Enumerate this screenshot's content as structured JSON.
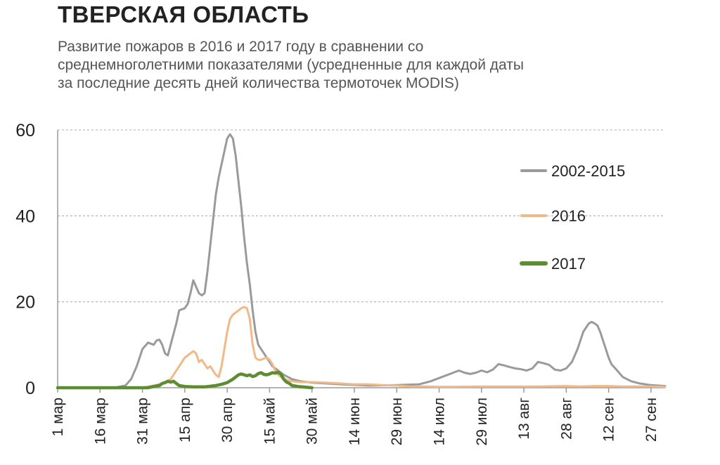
{
  "title": "ТВЕРСКАЯ ОБЛАСТЬ",
  "subtitle_lines": [
    "Развитие пожаров в 2016 и 2017 году в сравнении со",
    "среднемноголетними показателями (усредненные для каждой даты",
    "за последние десять дней количества термоточек MODIS)"
  ],
  "chart_data": {
    "type": "line",
    "title": "ТВЕРСКАЯ ОБЛАСТЬ",
    "xlabel": "",
    "ylabel": "",
    "ylim": [
      0,
      60
    ],
    "yticks": [
      0,
      20,
      40,
      60
    ],
    "xlim": [
      0,
      215
    ],
    "xticks": [
      {
        "day": 0,
        "label": "1 мар"
      },
      {
        "day": 15,
        "label": "16 мар"
      },
      {
        "day": 30,
        "label": "31 мар"
      },
      {
        "day": 45,
        "label": "15 апр"
      },
      {
        "day": 60,
        "label": "30 апр"
      },
      {
        "day": 75,
        "label": "15 май"
      },
      {
        "day": 90,
        "label": "30 май"
      },
      {
        "day": 105,
        "label": "14 июн"
      },
      {
        "day": 120,
        "label": "29 июн"
      },
      {
        "day": 135,
        "label": "14 июл"
      },
      {
        "day": 150,
        "label": "29 июл"
      },
      {
        "day": 165,
        "label": "13 авг"
      },
      {
        "day": 180,
        "label": "28 авг"
      },
      {
        "day": 195,
        "label": "12 сен"
      },
      {
        "day": 210,
        "label": "27 сен"
      }
    ],
    "grid": "horizontal-dashed",
    "legend_position": "right",
    "series": [
      {
        "name": "2002-2015",
        "color": "#9a9a9a",
        "points": [
          [
            0,
            0
          ],
          [
            20,
            0
          ],
          [
            24,
            0.5
          ],
          [
            26,
            2
          ],
          [
            28,
            5
          ],
          [
            30,
            9
          ],
          [
            32,
            10.5
          ],
          [
            34,
            10
          ],
          [
            35,
            11
          ],
          [
            36,
            11.2
          ],
          [
            37,
            10
          ],
          [
            38,
            8
          ],
          [
            39,
            7.5
          ],
          [
            40,
            10
          ],
          [
            42,
            15
          ],
          [
            43,
            18
          ],
          [
            45,
            18.5
          ],
          [
            46,
            19.5
          ],
          [
            47,
            22
          ],
          [
            48,
            25
          ],
          [
            49,
            23.5
          ],
          [
            50,
            22
          ],
          [
            51,
            21.5
          ],
          [
            52,
            22
          ],
          [
            53,
            27
          ],
          [
            54,
            33
          ],
          [
            55,
            39
          ],
          [
            56,
            45
          ],
          [
            57,
            49
          ],
          [
            58,
            52
          ],
          [
            59,
            55
          ],
          [
            60,
            58
          ],
          [
            61,
            59
          ],
          [
            62,
            58
          ],
          [
            63,
            54
          ],
          [
            64,
            48
          ],
          [
            65,
            42
          ],
          [
            66,
            35
          ],
          [
            67,
            29
          ],
          [
            68,
            24
          ],
          [
            69,
            18
          ],
          [
            70,
            13
          ],
          [
            71,
            10
          ],
          [
            72,
            9
          ],
          [
            74,
            7
          ],
          [
            76,
            5
          ],
          [
            78,
            4
          ],
          [
            80,
            3
          ],
          [
            83,
            2
          ],
          [
            86,
            1.5
          ],
          [
            90,
            1.2
          ],
          [
            95,
            1
          ],
          [
            100,
            0.8
          ],
          [
            110,
            0.5
          ],
          [
            120,
            0.6
          ],
          [
            128,
            0.8
          ],
          [
            132,
            1.5
          ],
          [
            136,
            2.5
          ],
          [
            140,
            3.5
          ],
          [
            142,
            4
          ],
          [
            144,
            3.5
          ],
          [
            146,
            3.2
          ],
          [
            148,
            3.5
          ],
          [
            150,
            4
          ],
          [
            152,
            3.6
          ],
          [
            154,
            4.2
          ],
          [
            156,
            5.5
          ],
          [
            158,
            5.2
          ],
          [
            160,
            4.8
          ],
          [
            162,
            4.5
          ],
          [
            164,
            4.3
          ],
          [
            166,
            4
          ],
          [
            168,
            4.5
          ],
          [
            170,
            6
          ],
          [
            172,
            5.7
          ],
          [
            174,
            5.3
          ],
          [
            176,
            4.2
          ],
          [
            178,
            4.0
          ],
          [
            180,
            4.5
          ],
          [
            182,
            6
          ],
          [
            184,
            9
          ],
          [
            186,
            13
          ],
          [
            188,
            15
          ],
          [
            189,
            15.3
          ],
          [
            190,
            15
          ],
          [
            191,
            14.5
          ],
          [
            192,
            13
          ],
          [
            193,
            11
          ],
          [
            194,
            9
          ],
          [
            195,
            7
          ],
          [
            196,
            5.5
          ],
          [
            198,
            4
          ],
          [
            200,
            2.5
          ],
          [
            203,
            1.5
          ],
          [
            206,
            1
          ],
          [
            210,
            0.6
          ],
          [
            215,
            0.4
          ]
        ]
      },
      {
        "name": "2016",
        "color": "#f2b887",
        "points": [
          [
            0,
            0
          ],
          [
            30,
            0
          ],
          [
            34,
            0.5
          ],
          [
            37,
            1
          ],
          [
            40,
            2
          ],
          [
            42,
            4
          ],
          [
            44,
            6
          ],
          [
            45,
            7
          ],
          [
            46,
            7.5
          ],
          [
            48,
            8.5
          ],
          [
            49,
            8
          ],
          [
            50,
            6
          ],
          [
            51,
            6.5
          ],
          [
            52,
            5.5
          ],
          [
            53,
            4.5
          ],
          [
            54,
            5
          ],
          [
            55,
            4
          ],
          [
            56,
            3
          ],
          [
            57,
            2.5
          ],
          [
            58,
            5
          ],
          [
            59,
            9
          ],
          [
            60,
            13
          ],
          [
            61,
            16
          ],
          [
            62,
            17
          ],
          [
            63,
            17.5
          ],
          [
            64,
            18
          ],
          [
            65,
            18.5
          ],
          [
            66,
            18.8
          ],
          [
            67,
            18.5
          ],
          [
            68,
            16
          ],
          [
            69,
            10
          ],
          [
            70,
            7
          ],
          [
            71,
            6.5
          ],
          [
            72,
            6.5
          ],
          [
            73,
            6.8
          ],
          [
            74,
            7
          ],
          [
            75,
            6.5
          ],
          [
            76,
            5.5
          ],
          [
            77,
            4
          ],
          [
            78,
            3
          ],
          [
            80,
            2
          ],
          [
            83,
            1.5
          ],
          [
            86,
            1.3
          ],
          [
            90,
            1.3
          ],
          [
            95,
            1.2
          ],
          [
            100,
            1
          ],
          [
            105,
            0.8
          ],
          [
            110,
            0.8
          ],
          [
            115,
            0.6
          ],
          [
            120,
            0.5
          ],
          [
            125,
            0.3
          ],
          [
            130,
            0.3
          ],
          [
            135,
            0.2
          ],
          [
            150,
            0.3
          ],
          [
            160,
            0.3
          ],
          [
            170,
            0.3
          ],
          [
            180,
            0.4
          ],
          [
            185,
            0.3
          ],
          [
            190,
            0.4
          ],
          [
            195,
            0.4
          ],
          [
            200,
            0.3
          ],
          [
            210,
            0.3
          ],
          [
            215,
            0.2
          ]
        ]
      },
      {
        "name": "2017",
        "color": "#5e8c31",
        "points": [
          [
            0,
            0
          ],
          [
            32,
            0
          ],
          [
            34,
            0.3
          ],
          [
            36,
            0.5
          ],
          [
            37,
            1
          ],
          [
            38,
            1.2
          ],
          [
            39,
            1.5
          ],
          [
            40,
            1.3
          ],
          [
            41,
            1.5
          ],
          [
            42,
            1
          ],
          [
            43,
            0.5
          ],
          [
            45,
            0.3
          ],
          [
            48,
            0.2
          ],
          [
            52,
            0.2
          ],
          [
            56,
            0.5
          ],
          [
            58,
            0.8
          ],
          [
            60,
            1.2
          ],
          [
            62,
            2
          ],
          [
            63,
            2.5
          ],
          [
            64,
            3
          ],
          [
            65,
            3.2
          ],
          [
            66,
            3
          ],
          [
            67,
            2.8
          ],
          [
            68,
            3
          ],
          [
            69,
            2.6
          ],
          [
            70,
            2.8
          ],
          [
            71,
            3.3
          ],
          [
            72,
            3.5
          ],
          [
            73,
            3.1
          ],
          [
            74,
            3
          ],
          [
            75,
            3.2
          ],
          [
            76,
            3.5
          ],
          [
            77,
            3.4
          ],
          [
            78,
            3.6
          ],
          [
            79,
            3.2
          ],
          [
            80,
            2
          ],
          [
            81,
            1.3
          ],
          [
            82,
            1
          ],
          [
            83,
            0.5
          ],
          [
            85,
            0.3
          ],
          [
            90,
            0
          ]
        ]
      }
    ]
  }
}
